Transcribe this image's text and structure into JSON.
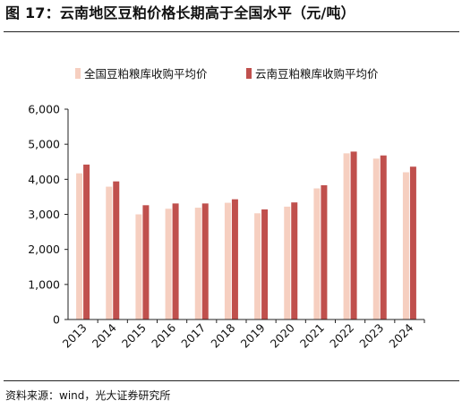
{
  "figure": {
    "title": "图 17：云南地区豆粕价格长期高于全国水平（元/吨）",
    "source": "资料来源：wind，光大证券研究所"
  },
  "chart_data": {
    "type": "bar",
    "categories": [
      "2013",
      "2014",
      "2015",
      "2016",
      "2017",
      "2018",
      "2019",
      "2020",
      "2021",
      "2022",
      "2023",
      "2024"
    ],
    "series": [
      {
        "name": "全国豆粕粮库收购平均价",
        "color": "#f6cfc0",
        "values": [
          4170,
          3790,
          3000,
          3160,
          3190,
          3330,
          3030,
          3220,
          3740,
          4740,
          4590,
          4200
        ]
      },
      {
        "name": "云南豆粕粮库收购平均价",
        "color": "#c0504d",
        "values": [
          4420,
          3940,
          3260,
          3310,
          3310,
          3430,
          3140,
          3340,
          3830,
          4790,
          4680,
          4360
        ]
      }
    ],
    "yticks": [
      "0",
      "1,000",
      "2,000",
      "3,000",
      "4,000",
      "5,000",
      "6,000"
    ],
    "ylim": [
      0,
      6000
    ],
    "xlabel": "",
    "ylabel": "",
    "grid": false,
    "legend": "top"
  }
}
